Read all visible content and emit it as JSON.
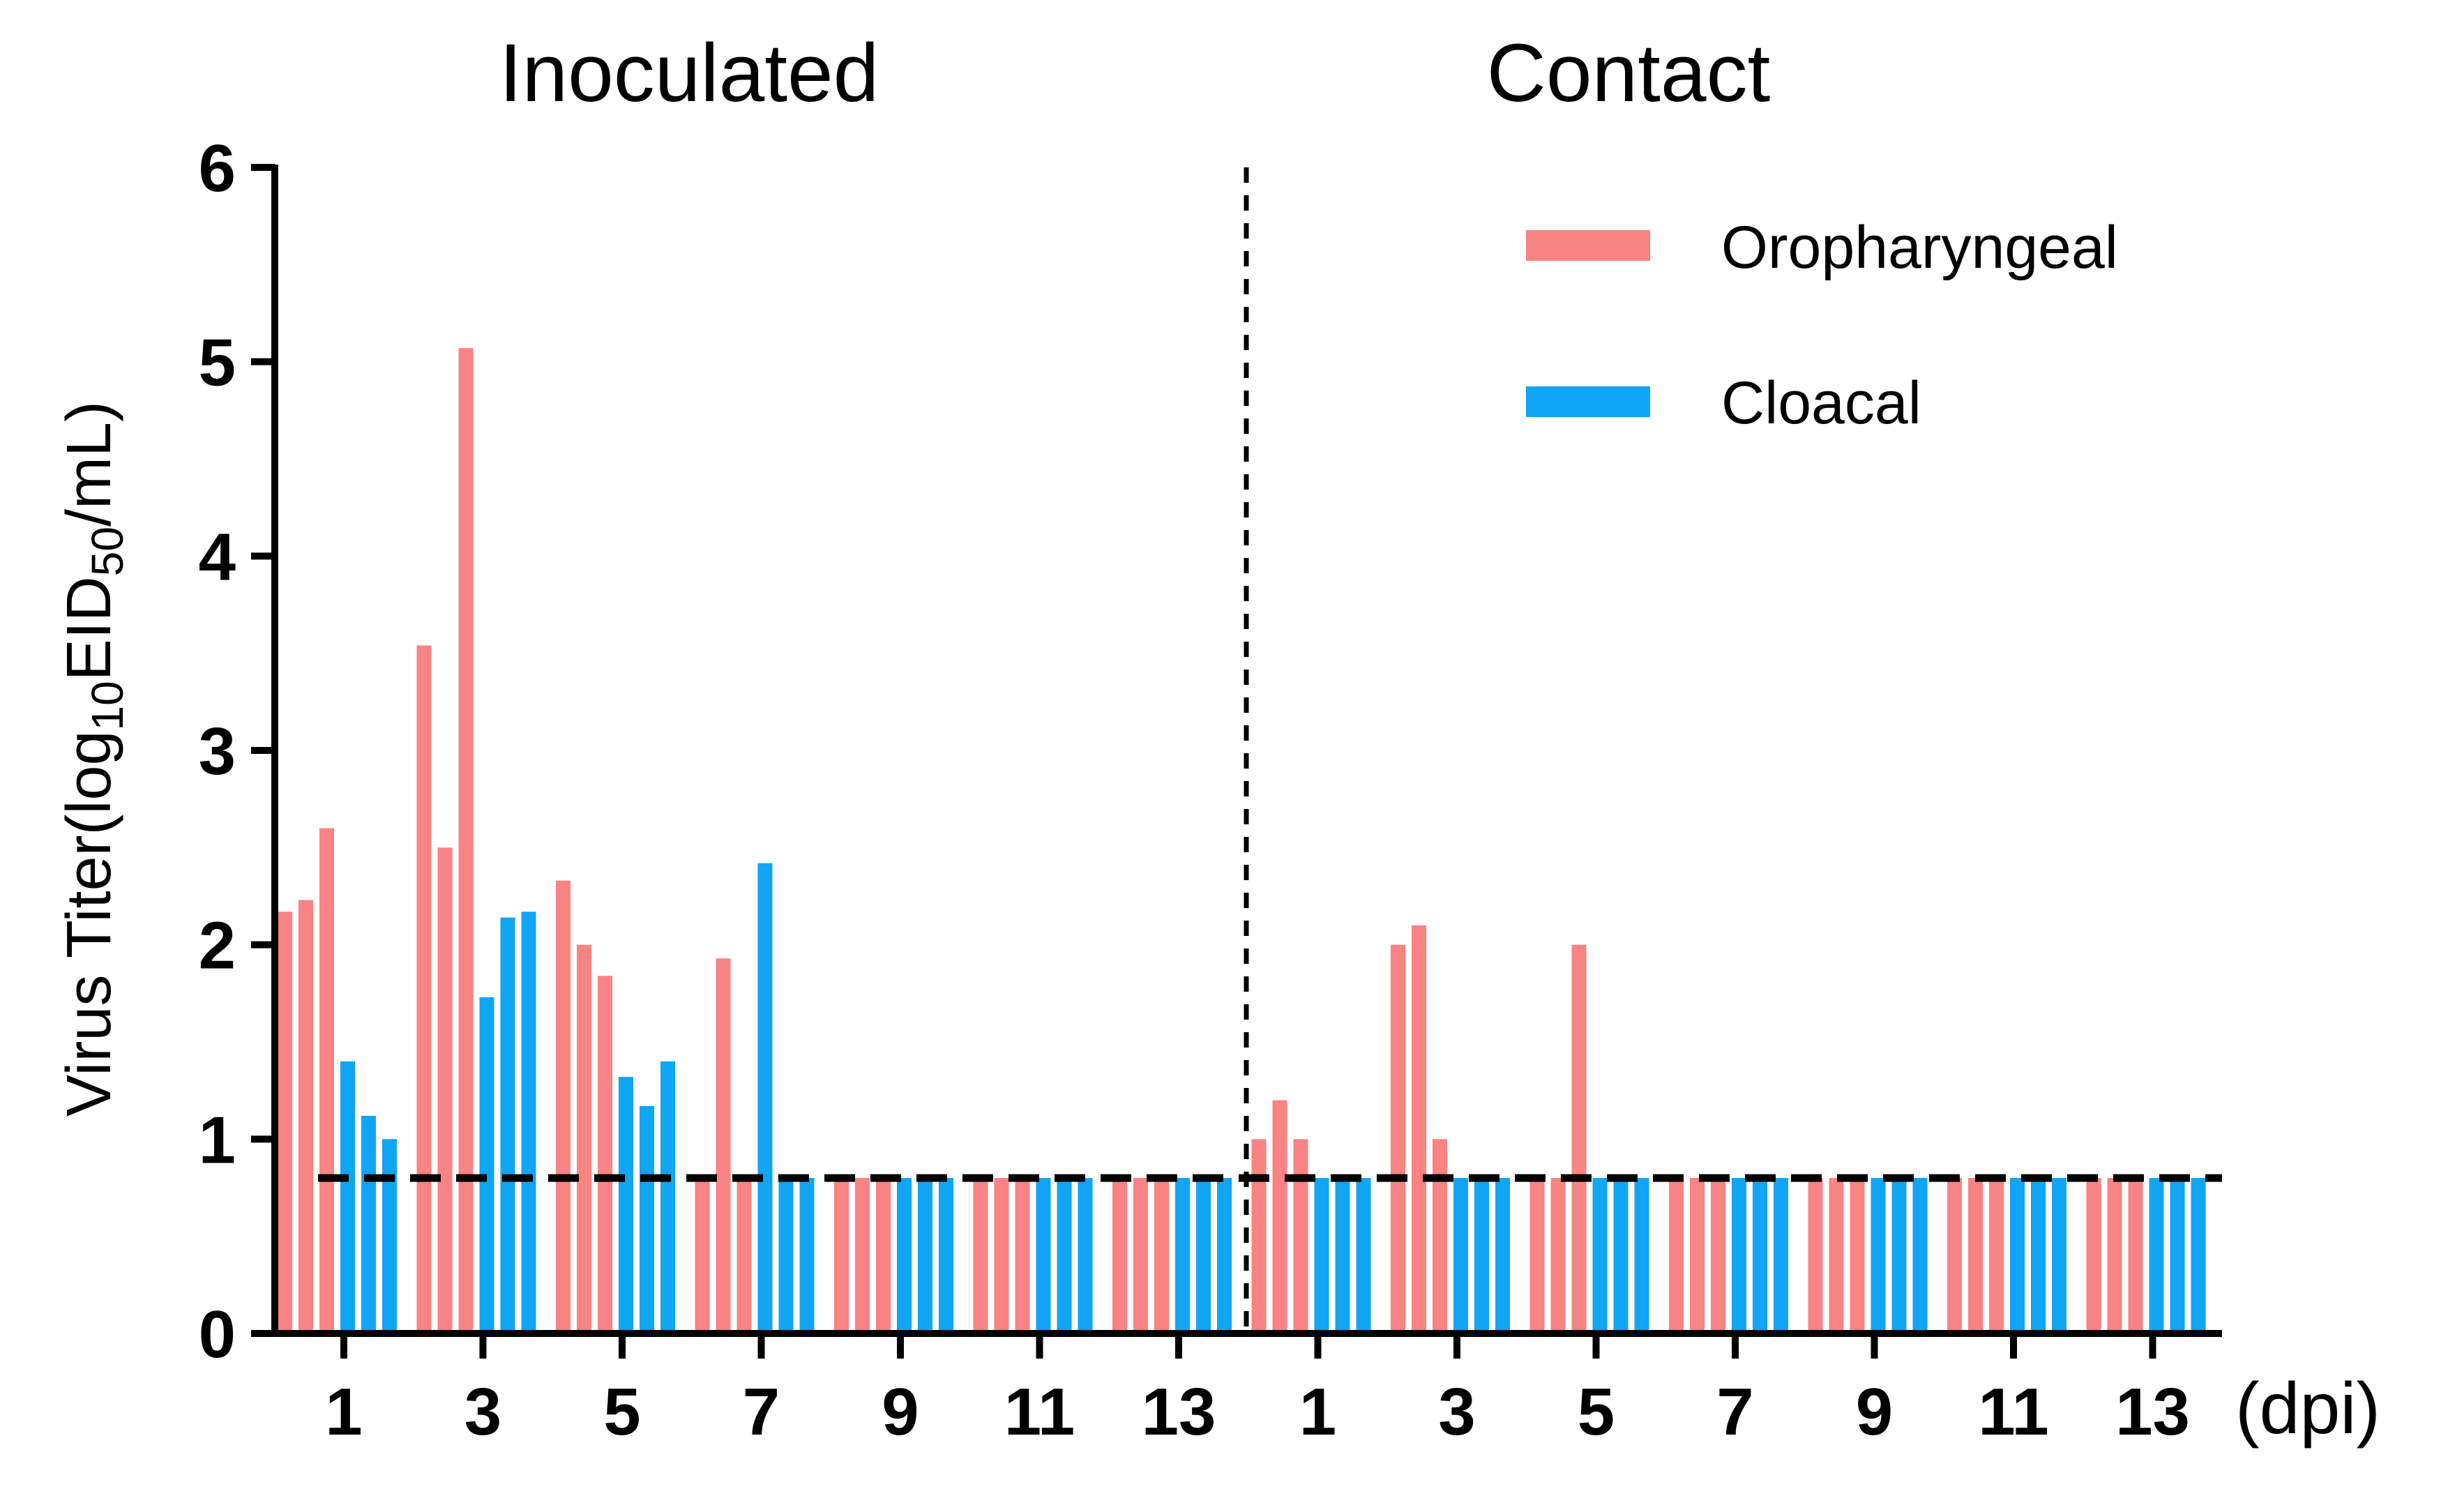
{
  "chart_data": {
    "type": "bar",
    "panels": [
      {
        "name": "Inoculated",
        "series": [
          {
            "name": "Oropharyngeal",
            "days": [
              1,
              3,
              5,
              7,
              9,
              11,
              13
            ],
            "values": [
              [
                2.17,
                2.23,
                2.6
              ],
              [
                3.54,
                2.5,
                5.07
              ],
              [
                2.33,
                2.0,
                1.84
              ],
              [
                0.8,
                1.93,
                0.8
              ],
              [
                0.8,
                0.8,
                0.8
              ],
              [
                0.8,
                0.8,
                0.8
              ],
              [
                0.8,
                0.8,
                0.8
              ]
            ]
          },
          {
            "name": "Cloacal",
            "days": [
              1,
              3,
              5,
              7,
              9,
              11,
              13
            ],
            "values": [
              [
                1.4,
                1.12,
                1.0
              ],
              [
                1.73,
                2.14,
                2.17
              ],
              [
                1.32,
                1.17,
                1.4
              ],
              [
                2.42,
                0.8,
                0.8
              ],
              [
                0.8,
                0.8,
                0.8
              ],
              [
                0.8,
                0.8,
                0.8
              ],
              [
                0.8,
                0.8,
                0.8
              ]
            ]
          }
        ]
      },
      {
        "name": "Contact",
        "series": [
          {
            "name": "Oropharyngeal",
            "days": [
              1,
              3,
              5,
              7,
              9,
              11,
              13
            ],
            "values": [
              [
                1.0,
                1.2,
                1.0
              ],
              [
                2.0,
                2.1,
                1.0
              ],
              [
                0.8,
                0.8,
                2.0
              ],
              [
                0.8,
                0.8,
                0.8
              ],
              [
                0.8,
                0.8,
                0.8
              ],
              [
                0.8,
                0.8,
                0.8
              ],
              [
                0.8,
                0.8,
                0.8
              ]
            ]
          },
          {
            "name": "Cloacal",
            "days": [
              1,
              3,
              5,
              7,
              9,
              11,
              13
            ],
            "values": [
              [
                0.8,
                0.8,
                0.8
              ],
              [
                0.8,
                0.8,
                0.8
              ],
              [
                0.8,
                0.8,
                0.8
              ],
              [
                0.8,
                0.8,
                0.8
              ],
              [
                0.8,
                0.8,
                0.8
              ],
              [
                0.8,
                0.8,
                0.8
              ],
              [
                0.8,
                0.8,
                0.8
              ]
            ]
          }
        ]
      }
    ],
    "panel_titles": [
      "Inoculated",
      "Contact"
    ],
    "ylabel": {
      "main": "Virus Titer(log",
      "sub1": "10",
      "mid": "EID",
      "sub2": "50",
      "end": "/mL)"
    },
    "xlabel": "(dpi)",
    "x_tick_labels": [
      "1",
      "3",
      "5",
      "7",
      "9",
      "11",
      "13"
    ],
    "y_ticks": [
      0,
      1,
      2,
      3,
      4,
      5,
      6
    ],
    "y_tick_labels": [
      "0",
      "1",
      "2",
      "3",
      "4",
      "5",
      "6"
    ],
    "ylim": [
      0,
      6
    ],
    "detection_limit": 0.8,
    "legend": [
      {
        "label": "Oropharyngeal",
        "color": "#FA8383"
      },
      {
        "label": "Cloacal",
        "color": "#10A5F5"
      }
    ],
    "legend_position": "top-right",
    "colors": {
      "oropharyngeal": "#FA8383",
      "cloacal": "#10A5F5",
      "axis": "#000000"
    }
  }
}
